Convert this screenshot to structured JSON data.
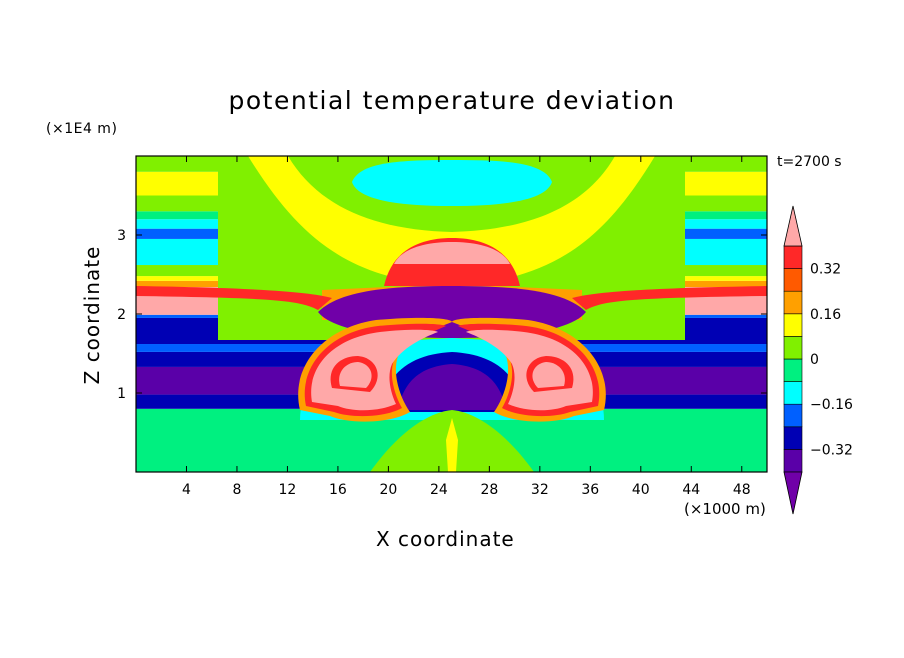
{
  "chart_data": {
    "type": "heatmap",
    "title": "potential temperature deviation",
    "xlabel": "X coordinate",
    "ylabel": "Z coordinate",
    "x_unit": "(×1000 m)",
    "y_unit": "(×1E4 m)",
    "time_label": "t=2700 s",
    "xlim": [
      0,
      50
    ],
    "ylim": [
      0,
      4
    ],
    "x_ticks": [
      "4",
      "8",
      "12",
      "16",
      "20",
      "24",
      "28",
      "32",
      "36",
      "40",
      "44",
      "48"
    ],
    "y_ticks": [
      "1",
      "2",
      "3"
    ],
    "colorbar": {
      "levels": [
        -0.48,
        -0.4,
        -0.32,
        -0.24,
        -0.16,
        -0.08,
        0,
        0.08,
        0.16,
        0.24,
        0.32,
        0.4
      ],
      "tick_labels": [
        "0.32",
        "0.16",
        "0",
        "−0.16",
        "−0.32"
      ],
      "colors": [
        "#7000a8",
        "#5a00a8",
        "#0000b4",
        "#0060ff",
        "#00ffff",
        "#00f080",
        "#80f000",
        "#ffff00",
        "#ffa000",
        "#ff5a00",
        "#ff2828",
        "#ffa8a8"
      ],
      "extend": "both"
    },
    "features": [
      {
        "field": "warm_band_left",
        "x": [
          0,
          15
        ],
        "y": [
          1.98,
          2.35
        ],
        "value": 0.45
      },
      {
        "field": "warm_band_right",
        "x": [
          35,
          50
        ],
        "y": [
          1.98,
          2.35
        ],
        "value": 0.45
      },
      {
        "field": "cold_layer",
        "x": [
          0,
          50
        ],
        "y": [
          0.8,
          1.95
        ],
        "value": -0.35
      },
      {
        "field": "upper_cap_warm",
        "x": [
          20,
          30
        ],
        "y": [
          2.65,
          2.95
        ],
        "value": 0.45
      },
      {
        "field": "upper_cold",
        "x": [
          17,
          33
        ],
        "y": [
          3.4,
          3.95
        ],
        "value": -0.12
      },
      {
        "field": "left_rotor_warm",
        "x": [
          12.5,
          22
        ],
        "y": [
          0.7,
          1.8
        ],
        "value": 0.45
      },
      {
        "field": "right_rotor_warm",
        "x": [
          28,
          37.5
        ],
        "y": [
          0.7,
          1.8
        ],
        "value": 0.45
      }
    ]
  }
}
